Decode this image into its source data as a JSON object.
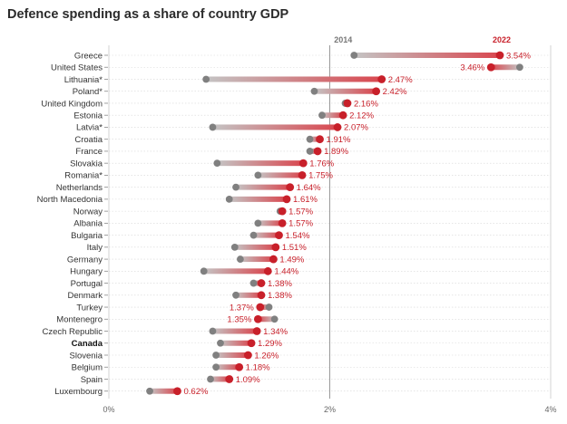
{
  "chart_data": {
    "type": "dumbbell",
    "title": "Defence spending as a share of country GDP",
    "series": [
      {
        "name": "2014",
        "color": "#808080"
      },
      {
        "name": "2022",
        "color": "#c8202a"
      }
    ],
    "xlim": [
      0,
      4
    ],
    "xticks": [
      {
        "value": 0,
        "label": "0%"
      },
      {
        "value": 2,
        "label": "2%"
      },
      {
        "value": 4,
        "label": "4%"
      }
    ],
    "reference_line": 2,
    "rows": [
      {
        "country": "Greece",
        "v2014": 2.22,
        "v2022": 3.54,
        "label": "3.54%",
        "bold": false
      },
      {
        "country": "United States",
        "v2014": 3.72,
        "v2022": 3.46,
        "label": "3.46%",
        "bold": false
      },
      {
        "country": "Lithuania*",
        "v2014": 0.88,
        "v2022": 2.47,
        "label": "2.47%",
        "bold": false
      },
      {
        "country": "Poland*",
        "v2014": 1.86,
        "v2022": 2.42,
        "label": "2.42%",
        "bold": false
      },
      {
        "country": "United Kingdom",
        "v2014": 2.14,
        "v2022": 2.16,
        "label": "2.16%",
        "bold": false
      },
      {
        "country": "Estonia",
        "v2014": 1.93,
        "v2022": 2.12,
        "label": "2.12%",
        "bold": false
      },
      {
        "country": "Latvia*",
        "v2014": 0.94,
        "v2022": 2.07,
        "label": "2.07%",
        "bold": false
      },
      {
        "country": "Croatia",
        "v2014": 1.82,
        "v2022": 1.91,
        "label": "1.91%",
        "bold": false
      },
      {
        "country": "France",
        "v2014": 1.82,
        "v2022": 1.89,
        "label": "1.89%",
        "bold": false
      },
      {
        "country": "Slovakia",
        "v2014": 0.98,
        "v2022": 1.76,
        "label": "1.76%",
        "bold": false
      },
      {
        "country": "Romania*",
        "v2014": 1.35,
        "v2022": 1.75,
        "label": "1.75%",
        "bold": false
      },
      {
        "country": "Netherlands",
        "v2014": 1.15,
        "v2022": 1.64,
        "label": "1.64%",
        "bold": false
      },
      {
        "country": "North Macedonia",
        "v2014": 1.09,
        "v2022": 1.61,
        "label": "1.61%",
        "bold": false
      },
      {
        "country": "Norway",
        "v2014": 1.55,
        "v2022": 1.57,
        "label": "1.57%",
        "bold": false
      },
      {
        "country": "Albania",
        "v2014": 1.35,
        "v2022": 1.57,
        "label": "1.57%",
        "bold": false
      },
      {
        "country": "Bulgaria",
        "v2014": 1.31,
        "v2022": 1.54,
        "label": "1.54%",
        "bold": false
      },
      {
        "country": "Italy",
        "v2014": 1.14,
        "v2022": 1.51,
        "label": "1.51%",
        "bold": false
      },
      {
        "country": "Germany",
        "v2014": 1.19,
        "v2022": 1.49,
        "label": "1.49%",
        "bold": false
      },
      {
        "country": "Hungary",
        "v2014": 0.86,
        "v2022": 1.44,
        "label": "1.44%",
        "bold": false
      },
      {
        "country": "Portugal",
        "v2014": 1.31,
        "v2022": 1.38,
        "label": "1.38%",
        "bold": false
      },
      {
        "country": "Denmark",
        "v2014": 1.15,
        "v2022": 1.38,
        "label": "1.38%",
        "bold": false
      },
      {
        "country": "Turkey",
        "v2014": 1.45,
        "v2022": 1.37,
        "label": "1.37%",
        "bold": false
      },
      {
        "country": "Montenegro",
        "v2014": 1.5,
        "v2022": 1.35,
        "label": "1.35%",
        "bold": false
      },
      {
        "country": "Czech Republic",
        "v2014": 0.94,
        "v2022": 1.34,
        "label": "1.34%",
        "bold": false
      },
      {
        "country": "Canada",
        "v2014": 1.01,
        "v2022": 1.29,
        "label": "1.29%",
        "bold": true
      },
      {
        "country": "Slovenia",
        "v2014": 0.97,
        "v2022": 1.26,
        "label": "1.26%",
        "bold": false
      },
      {
        "country": "Belgium",
        "v2014": 0.97,
        "v2022": 1.18,
        "label": "1.18%",
        "bold": false
      },
      {
        "country": "Spain",
        "v2014": 0.92,
        "v2022": 1.09,
        "label": "1.09%",
        "bold": false
      },
      {
        "country": "Luxembourg",
        "v2014": 0.37,
        "v2022": 0.62,
        "label": "0.62%",
        "bold": false
      }
    ]
  }
}
